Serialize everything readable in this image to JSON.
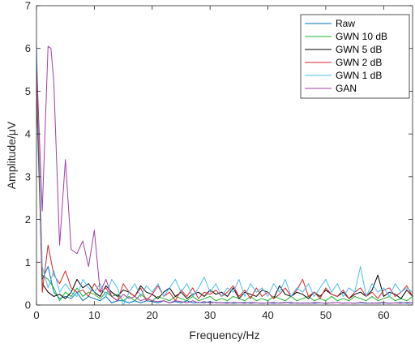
{
  "chart_data": {
    "type": "line",
    "xlabel": "Frequency/Hz",
    "ylabel": "Amplitude/μV",
    "xlim": [
      0,
      65
    ],
    "ylim": [
      0,
      7
    ],
    "x_ticks": [
      0,
      10,
      20,
      30,
      40,
      50,
      60
    ],
    "y_ticks": [
      0,
      1,
      2,
      3,
      4,
      5,
      6,
      7
    ],
    "grid": false,
    "legend_position": "top-right",
    "series": [
      {
        "name": "Raw",
        "color": "#0072BD",
        "x": [
          0,
          1,
          2,
          3,
          4,
          5,
          6,
          7,
          8,
          9,
          10,
          11,
          12,
          13,
          14,
          15,
          16,
          17,
          18,
          19,
          20,
          21,
          22,
          23,
          24,
          25,
          26,
          27,
          28,
          29,
          30,
          31,
          32,
          33,
          34,
          35,
          36,
          37,
          38,
          39,
          40,
          41,
          42,
          43,
          44,
          45,
          46,
          47,
          48,
          49,
          50,
          51,
          52,
          53,
          54,
          55,
          56,
          57,
          58,
          59,
          60,
          61,
          62,
          63,
          64,
          65
        ],
        "values": [
          4.9,
          0.6,
          0.9,
          0.3,
          0.15,
          0.2,
          0.15,
          0.3,
          0.1,
          0.2,
          0.15,
          0.1,
          0.2,
          0.05,
          0.1,
          0.1,
          0.05,
          0.1,
          0.05,
          0.1,
          0.08,
          0.05,
          0.1,
          0.05,
          0.08,
          0.05,
          0.1,
          0.05,
          0.06,
          0.05,
          0.08,
          0.05,
          0.05,
          0.06,
          0.04,
          0.05,
          0.06,
          0.04,
          0.05,
          0.04,
          0.05,
          0.04,
          0.05,
          0.06,
          0.04,
          0.05,
          0.04,
          0.05,
          0.04,
          0.05,
          0.04,
          0.05,
          0.06,
          0.04,
          0.05,
          0.04,
          0.05,
          0.04,
          0.05,
          0.04,
          0.05,
          0.04,
          0.05,
          0.06,
          0.04,
          0.05
        ]
      },
      {
        "name": "GWN 10 dB",
        "color": "#1FB02C",
        "x": [
          0,
          1,
          2,
          3,
          4,
          5,
          6,
          7,
          8,
          9,
          10,
          11,
          12,
          13,
          14,
          15,
          16,
          17,
          18,
          19,
          20,
          21,
          22,
          23,
          24,
          25,
          26,
          27,
          28,
          29,
          30,
          31,
          32,
          33,
          34,
          35,
          36,
          37,
          38,
          39,
          40,
          41,
          42,
          43,
          44,
          45,
          46,
          47,
          48,
          49,
          50,
          51,
          52,
          53,
          54,
          55,
          56,
          57,
          58,
          59,
          60,
          61,
          62,
          63,
          64,
          65
        ],
        "values": [
          5.2,
          0.7,
          0.6,
          0.4,
          0.1,
          0.3,
          0.2,
          0.4,
          0.2,
          0.3,
          0.25,
          0.15,
          0.3,
          0.2,
          0.25,
          0.1,
          0.2,
          0.1,
          0.25,
          0.15,
          0.1,
          0.2,
          0.15,
          0.1,
          0.2,
          0.15,
          0.1,
          0.2,
          0.1,
          0.15,
          0.2,
          0.1,
          0.15,
          0.1,
          0.2,
          0.15,
          0.1,
          0.2,
          0.1,
          0.15,
          0.1,
          0.2,
          0.15,
          0.1,
          0.2,
          0.1,
          0.15,
          0.2,
          0.1,
          0.15,
          0.1,
          0.2,
          0.1,
          0.15,
          0.1,
          0.2,
          0.15,
          0.1,
          0.2,
          0.1,
          0.15,
          0.2,
          0.1,
          0.15,
          0.1,
          0.2
        ]
      },
      {
        "name": "GWN 5 dB",
        "color": "#000000",
        "x": [
          0,
          1,
          2,
          3,
          4,
          5,
          6,
          7,
          8,
          9,
          10,
          11,
          12,
          13,
          14,
          15,
          16,
          17,
          18,
          19,
          20,
          21,
          22,
          23,
          24,
          25,
          26,
          27,
          28,
          29,
          30,
          31,
          32,
          33,
          34,
          35,
          36,
          37,
          38,
          39,
          40,
          41,
          42,
          43,
          44,
          45,
          46,
          47,
          48,
          49,
          50,
          51,
          52,
          53,
          54,
          55,
          56,
          57,
          58,
          59,
          60,
          61,
          62,
          63,
          64,
          65
        ],
        "values": [
          5.6,
          0.5,
          0.3,
          0.2,
          0.25,
          0.15,
          0.3,
          0.6,
          0.4,
          0.5,
          0.3,
          0.2,
          0.45,
          0.3,
          0.2,
          0.35,
          0.3,
          0.2,
          0.45,
          0.3,
          0.25,
          0.15,
          0.3,
          0.4,
          0.2,
          0.3,
          0.15,
          0.25,
          0.3,
          0.2,
          0.35,
          0.25,
          0.3,
          0.2,
          0.4,
          0.15,
          0.3,
          0.25,
          0.2,
          0.35,
          0.3,
          0.15,
          0.45,
          0.25,
          0.2,
          0.3,
          0.25,
          0.15,
          0.3,
          0.2,
          0.35,
          0.25,
          0.2,
          0.3,
          0.15,
          0.25,
          0.3,
          0.2,
          0.35,
          0.7,
          0.2,
          0.3,
          0.25,
          0.15,
          0.35,
          0.2
        ]
      },
      {
        "name": "GWN 2 dB",
        "color": "#D62728",
        "x": [
          0,
          1,
          2,
          3,
          4,
          5,
          6,
          7,
          8,
          9,
          10,
          11,
          12,
          13,
          14,
          15,
          16,
          17,
          18,
          19,
          20,
          21,
          22,
          23,
          24,
          25,
          26,
          27,
          28,
          29,
          30,
          31,
          32,
          33,
          34,
          35,
          36,
          37,
          38,
          39,
          40,
          41,
          42,
          43,
          44,
          45,
          46,
          47,
          48,
          49,
          50,
          51,
          52,
          53,
          54,
          55,
          56,
          57,
          58,
          59,
          60,
          61,
          62,
          63,
          64,
          65
        ],
        "values": [
          5.5,
          0.3,
          1.4,
          0.7,
          0.5,
          0.8,
          0.4,
          0.3,
          0.35,
          0.2,
          0.5,
          0.3,
          0.4,
          0.2,
          0.1,
          0.5,
          0.3,
          0.2,
          0.4,
          0.1,
          0.25,
          0.45,
          0.2,
          0.3,
          0.1,
          0.35,
          0.2,
          0.4,
          0.15,
          0.3,
          0.25,
          0.35,
          0.2,
          0.3,
          0.45,
          0.2,
          0.35,
          0.15,
          0.4,
          0.2,
          0.3,
          0.15,
          0.25,
          0.4,
          0.2,
          0.35,
          0.6,
          0.2,
          0.3,
          0.15,
          0.4,
          0.25,
          0.2,
          0.35,
          0.15,
          0.3,
          0.4,
          0.2,
          0.3,
          0.15,
          0.35,
          0.4,
          0.2,
          0.3,
          0.45,
          0.2
        ]
      },
      {
        "name": "GWN 1 dB",
        "color": "#4DBEEE",
        "x": [
          0,
          1,
          2,
          3,
          4,
          5,
          6,
          7,
          8,
          9,
          10,
          11,
          12,
          13,
          14,
          15,
          16,
          17,
          18,
          19,
          20,
          21,
          22,
          23,
          24,
          25,
          26,
          27,
          28,
          29,
          30,
          31,
          32,
          33,
          34,
          35,
          36,
          37,
          38,
          39,
          40,
          41,
          42,
          43,
          44,
          45,
          46,
          47,
          48,
          49,
          50,
          51,
          52,
          53,
          54,
          55,
          56,
          57,
          58,
          59,
          60,
          61,
          62,
          63,
          64,
          65
        ],
        "values": [
          6.1,
          0.9,
          0.4,
          0.8,
          0.3,
          0.5,
          0.3,
          0.2,
          0.6,
          0.4,
          0.3,
          0.5,
          0.2,
          0.6,
          0.4,
          0.0,
          0.3,
          0.5,
          0.2,
          0.45,
          0.3,
          0.5,
          0.2,
          0.4,
          0.6,
          0.3,
          0.5,
          0.2,
          0.4,
          0.65,
          0.3,
          0.5,
          0.2,
          0.4,
          0.3,
          0.6,
          0.2,
          0.5,
          0.3,
          0.4,
          0.2,
          0.5,
          0.3,
          0.6,
          0.2,
          0.4,
          0.3,
          0.5,
          0.2,
          0.4,
          0.6,
          0.3,
          0.5,
          0.2,
          0.4,
          0.3,
          0.9,
          0.2,
          0.5,
          0.3,
          0.4,
          0.2,
          0.5,
          0.3,
          0.4,
          0.3
        ]
      },
      {
        "name": "GAN",
        "color": "#A040A0",
        "x": [
          0,
          1,
          2,
          2.5,
          3,
          4,
          5,
          6,
          7,
          8,
          9,
          10,
          11,
          12,
          13,
          14,
          15,
          16,
          17,
          18,
          19,
          20,
          21,
          22,
          23,
          24,
          25,
          26,
          27,
          28,
          29,
          30,
          31,
          32,
          33,
          34,
          35,
          36,
          37,
          38,
          39,
          40,
          41,
          42,
          43,
          44,
          45,
          46,
          47,
          48,
          49,
          50,
          51,
          52,
          53,
          54,
          55,
          56,
          57,
          58,
          59,
          60,
          61,
          62,
          63,
          64,
          65
        ],
        "values": [
          5.7,
          2.2,
          6.05,
          6.0,
          5.2,
          1.4,
          3.4,
          1.3,
          1.2,
          1.5,
          0.9,
          1.75,
          0.3,
          0.6,
          0.2,
          0.1,
          0.25,
          0.15,
          0.2,
          0.1,
          0.15,
          0.1,
          0.08,
          0.1,
          0.05,
          0.1,
          0.08,
          0.05,
          0.1,
          0.05,
          0.08,
          0.05,
          0.06,
          0.05,
          0.04,
          0.06,
          0.05,
          0.04,
          0.06,
          0.05,
          0.04,
          0.05,
          0.06,
          0.04,
          0.05,
          0.06,
          0.04,
          0.05,
          0.04,
          0.06,
          0.05,
          0.04,
          0.05,
          0.06,
          0.04,
          0.05,
          0.04,
          0.06,
          0.05,
          0.04,
          0.05,
          0.06,
          0.04,
          0.05,
          0.04,
          0.06,
          0.05
        ]
      }
    ]
  }
}
